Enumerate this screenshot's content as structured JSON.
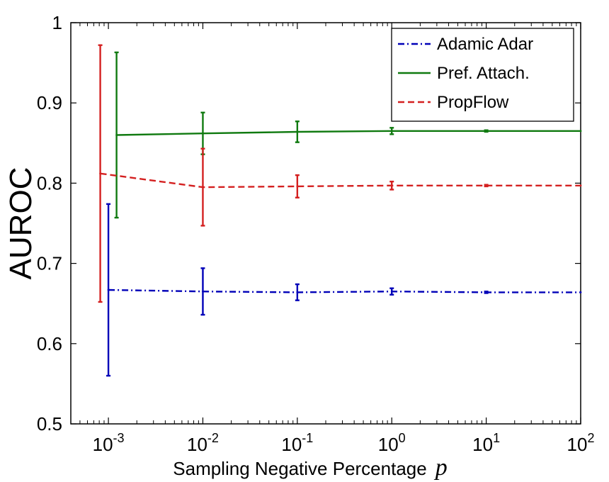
{
  "chart_data": {
    "type": "line",
    "xscale": "log",
    "x_tick_labels": [
      {
        "base": "10",
        "exp": "-3",
        "value": 0.001
      },
      {
        "base": "10",
        "exp": "-2",
        "value": 0.01
      },
      {
        "base": "10",
        "exp": "-1",
        "value": 0.1
      },
      {
        "base": "10",
        "exp": "0",
        "value": 1
      },
      {
        "base": "10",
        "exp": "1",
        "value": 10
      },
      {
        "base": "10",
        "exp": "2",
        "value": 100
      }
    ],
    "y_tick_labels": [
      "0.5",
      "0.6",
      "0.7",
      "0.8",
      "0.9",
      "1"
    ],
    "y_tick_values": [
      0.5,
      0.6,
      0.7,
      0.8,
      0.9,
      1.0
    ],
    "xlim": [
      0.0004,
      100
    ],
    "ylim": [
      0.5,
      1.0
    ],
    "xlabel": "Sampling Negative Percentage",
    "xlabel_symbol": "p",
    "ylabel": "AUROC",
    "legend_position": "top-right",
    "series": [
      {
        "name": "Adamic Adar",
        "color": "#0000b8",
        "style": "dashdot",
        "points": [
          {
            "x": 0.001,
            "y": 0.667,
            "err": 0.107
          },
          {
            "x": 0.01,
            "y": 0.665,
            "err": 0.029
          },
          {
            "x": 0.1,
            "y": 0.664,
            "err": 0.01
          },
          {
            "x": 1,
            "y": 0.665,
            "err": 0.004
          },
          {
            "x": 10,
            "y": 0.664,
            "err": 0.001
          },
          {
            "x": 100,
            "y": 0.664,
            "err": 0
          }
        ]
      },
      {
        "name": "Pref. Attach.",
        "color": "#107a10",
        "style": "solid",
        "points": [
          {
            "x": 0.00122,
            "y": 0.86,
            "err": 0.103
          },
          {
            "x": 0.01,
            "y": 0.862,
            "err": 0.026
          },
          {
            "x": 0.1,
            "y": 0.864,
            "err": 0.013
          },
          {
            "x": 1,
            "y": 0.865,
            "err": 0.004
          },
          {
            "x": 10,
            "y": 0.865,
            "err": 0.001
          },
          {
            "x": 100,
            "y": 0.865,
            "err": 0
          }
        ]
      },
      {
        "name": "PropFlow",
        "color": "#d42020",
        "style": "dashed",
        "points": [
          {
            "x": 0.00082,
            "y": 0.812,
            "err": 0.16
          },
          {
            "x": 0.01,
            "y": 0.795,
            "err": 0.048
          },
          {
            "x": 0.1,
            "y": 0.796,
            "err": 0.014
          },
          {
            "x": 1,
            "y": 0.797,
            "err": 0.005
          },
          {
            "x": 10,
            "y": 0.797,
            "err": 0.001
          },
          {
            "x": 100,
            "y": 0.797,
            "err": 0
          }
        ]
      }
    ]
  }
}
